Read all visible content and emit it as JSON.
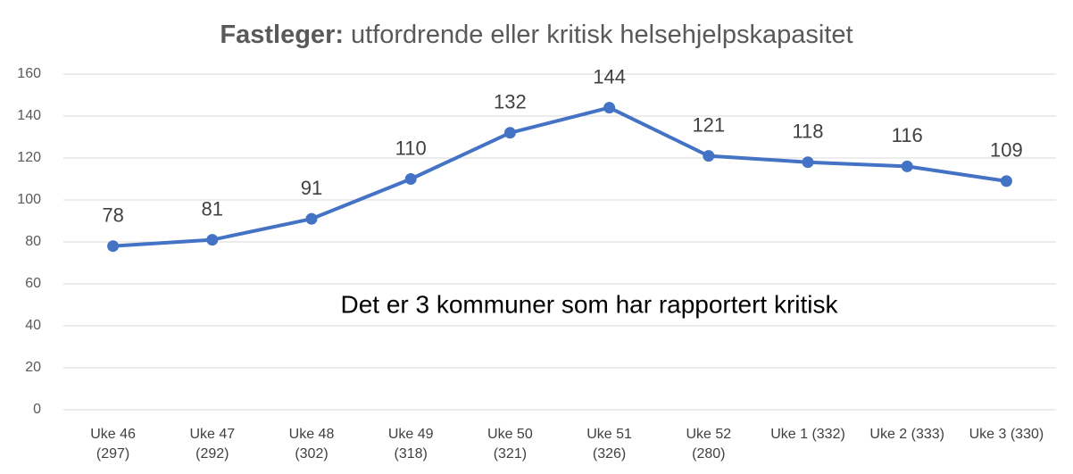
{
  "chart_data": {
    "type": "line",
    "title": {
      "bold": "Fastleger:",
      "text": "utfordrende eller kritisk helsehjelpskapasitet"
    },
    "annotation": "Det er 3 kommuner som har rapportert kritisk",
    "categories": [
      "Uke 46 (297)",
      "Uke 47 (292)",
      "Uke 48 (302)",
      "Uke 49 (318)",
      "Uke 50 (321)",
      "Uke 51 (326)",
      "Uke 52 (280)",
      "Uke 1 (332)",
      "Uke 2 (333)",
      "Uke 3 (330)"
    ],
    "series": [
      {
        "name": "Fastleger",
        "color": "#4472c4",
        "values": [
          78,
          81,
          91,
          110,
          132,
          144,
          121,
          118,
          116,
          109
        ]
      }
    ],
    "ylim": [
      0,
      160
    ],
    "yticks": [
      0,
      20,
      40,
      60,
      80,
      100,
      120,
      140,
      160
    ],
    "grid": true
  }
}
